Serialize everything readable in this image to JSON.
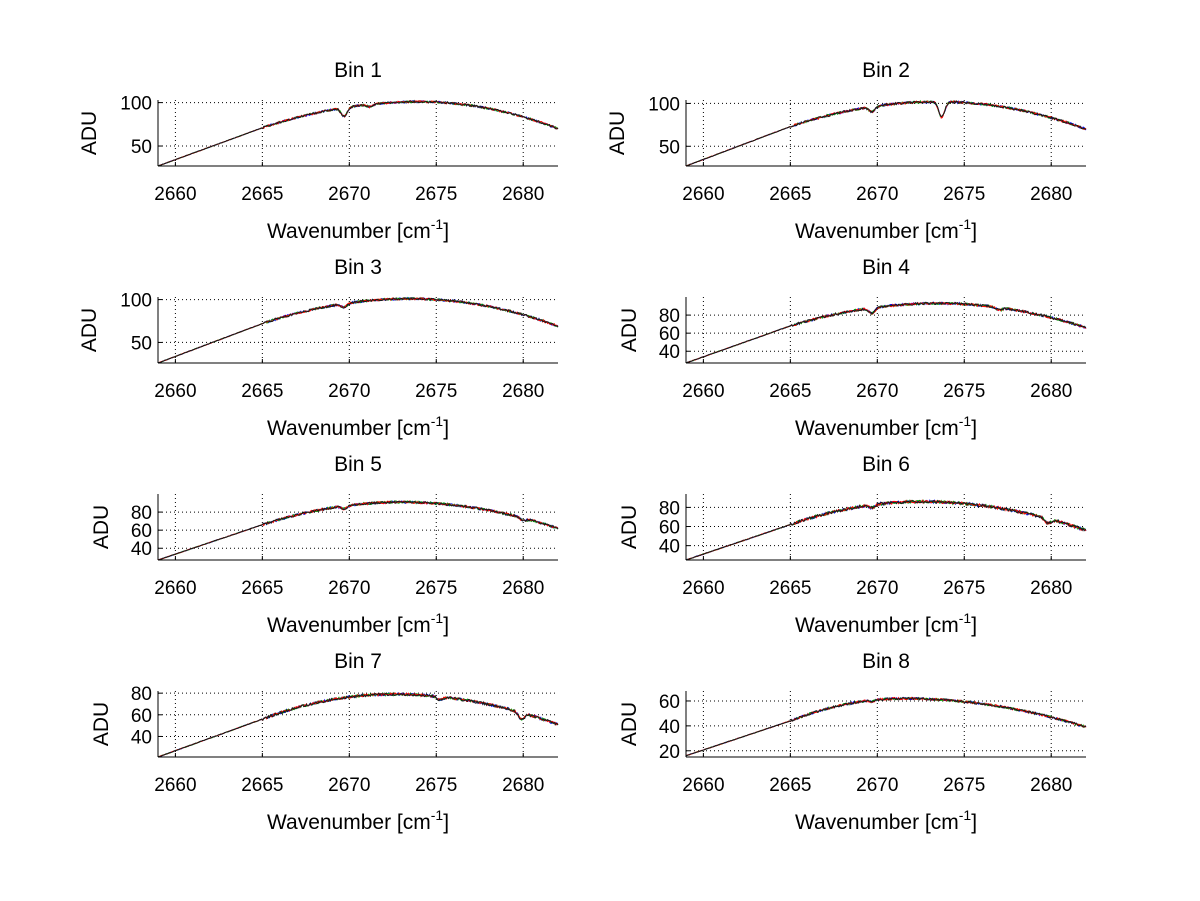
{
  "figure": {
    "colors": {
      "background": "#ffffff",
      "axes": "#000000",
      "grid": "#000000",
      "series": [
        "#0000ff",
        "#00a000",
        "#ff0000",
        "#1a1a1a"
      ]
    }
  },
  "chart_data": [
    {
      "type": "line",
      "title": "Bin 1",
      "xlabel_main": "Wavenumber [cm",
      "xlabel_sup": "-1",
      "xlabel_end": "]",
      "ylabel": "ADU",
      "xlim": [
        2659,
        2682
      ],
      "ylim": [
        27,
        103
      ],
      "grid": true,
      "xticks": [
        2660,
        2665,
        2670,
        2675,
        2680
      ],
      "xtick_labels": [
        "2660",
        "2665",
        "2670",
        "2675",
        "2680"
      ],
      "yticks": [
        50,
        100
      ],
      "ytick_labels": [
        "50",
        "100"
      ],
      "curve": {
        "start": 27,
        "mid": 71,
        "peak": 101,
        "peak_x": 2674,
        "end": 70,
        "dips": [
          [
            2669.7,
            -10
          ],
          [
            2671.2,
            -3
          ]
        ],
        "noise": 1.2
      }
    },
    {
      "type": "line",
      "title": "Bin 2",
      "xlabel_main": "Wavenumber [cm",
      "xlabel_sup": "-1",
      "xlabel_end": "]",
      "ylabel": "ADU",
      "xlim": [
        2659,
        2682
      ],
      "ylim": [
        27,
        104
      ],
      "grid": true,
      "xticks": [
        2660,
        2665,
        2670,
        2675,
        2680
      ],
      "xtick_labels": [
        "2660",
        "2665",
        "2670",
        "2675",
        "2680"
      ],
      "yticks": [
        50,
        100
      ],
      "ytick_labels": [
        "50",
        "100"
      ],
      "curve": {
        "start": 27,
        "mid": 73,
        "peak": 102,
        "peak_x": 2673.5,
        "end": 70,
        "dips": [
          [
            2669.7,
            -6
          ],
          [
            2673.7,
            -18
          ]
        ],
        "noise": 1.3
      }
    },
    {
      "type": "line",
      "title": "Bin 3",
      "xlabel_main": "Wavenumber [cm",
      "xlabel_sup": "-1",
      "xlabel_end": "]",
      "ylabel": "ADU",
      "xlim": [
        2659,
        2682
      ],
      "ylim": [
        26,
        103
      ],
      "grid": true,
      "xticks": [
        2660,
        2665,
        2670,
        2675,
        2680
      ],
      "xtick_labels": [
        "2660",
        "2665",
        "2670",
        "2675",
        "2680"
      ],
      "yticks": [
        50,
        100
      ],
      "ytick_labels": [
        "50",
        "100"
      ],
      "curve": {
        "start": 26,
        "mid": 72,
        "peak": 101,
        "peak_x": 2673.5,
        "end": 69,
        "dips": [
          [
            2669.7,
            -4
          ]
        ],
        "noise": 1.3
      }
    },
    {
      "type": "line",
      "title": "Bin 4",
      "xlabel_main": "Wavenumber [cm",
      "xlabel_sup": "-1",
      "xlabel_end": "]",
      "ylabel": "ADU",
      "xlim": [
        2659,
        2682
      ],
      "ylim": [
        27,
        100
      ],
      "grid": true,
      "xticks": [
        2660,
        2665,
        2670,
        2675,
        2680
      ],
      "xtick_labels": [
        "2660",
        "2665",
        "2670",
        "2675",
        "2680"
      ],
      "yticks": [
        40,
        60,
        80
      ],
      "ytick_labels": [
        "40",
        "60",
        "80"
      ],
      "curve": {
        "start": 27,
        "mid": 68,
        "peak": 93,
        "peak_x": 2673.5,
        "end": 66,
        "dips": [
          [
            2669.7,
            -6
          ],
          [
            2677,
            -3
          ]
        ],
        "noise": 1.3
      }
    },
    {
      "type": "line",
      "title": "Bin 5",
      "xlabel_main": "Wavenumber [cm",
      "xlabel_sup": "-1",
      "xlabel_end": "]",
      "ylabel": "ADU",
      "xlim": [
        2659,
        2682
      ],
      "ylim": [
        27,
        100
      ],
      "grid": true,
      "xticks": [
        2660,
        2665,
        2670,
        2675,
        2680
      ],
      "xtick_labels": [
        "2660",
        "2665",
        "2670",
        "2675",
        "2680"
      ],
      "yticks": [
        40,
        60,
        80
      ],
      "ytick_labels": [
        "40",
        "60",
        "80"
      ],
      "curve": {
        "start": 27,
        "mid": 66,
        "peak": 91,
        "peak_x": 2673,
        "end": 62,
        "dips": [
          [
            2669.7,
            -3
          ],
          [
            2680,
            -3
          ]
        ],
        "noise": 1.3
      }
    },
    {
      "type": "line",
      "title": "Bin 6",
      "xlabel_main": "Wavenumber [cm",
      "xlabel_sup": "-1",
      "xlabel_end": "]",
      "ylabel": "ADU",
      "xlim": [
        2659,
        2682
      ],
      "ylim": [
        25,
        94
      ],
      "grid": true,
      "xticks": [
        2660,
        2665,
        2670,
        2675,
        2680
      ],
      "xtick_labels": [
        "2660",
        "2665",
        "2670",
        "2675",
        "2680"
      ],
      "yticks": [
        40,
        60,
        80
      ],
      "ytick_labels": [
        "40",
        "60",
        "80"
      ],
      "curve": {
        "start": 25,
        "mid": 62,
        "peak": 86,
        "peak_x": 2672.5,
        "end": 56,
        "dips": [
          [
            2669.7,
            -3
          ],
          [
            2679.8,
            -5
          ]
        ],
        "noise": 1.5
      }
    },
    {
      "type": "line",
      "title": "Bin 7",
      "xlabel_main": "Wavenumber [cm",
      "xlabel_sup": "-1",
      "xlabel_end": "]",
      "ylabel": "ADU",
      "xlim": [
        2659,
        2682
      ],
      "ylim": [
        21,
        82
      ],
      "grid": true,
      "xticks": [
        2660,
        2665,
        2670,
        2675,
        2680
      ],
      "xtick_labels": [
        "2660",
        "2665",
        "2670",
        "2675",
        "2680"
      ],
      "yticks": [
        40,
        60,
        80
      ],
      "ytick_labels": [
        "40",
        "60",
        "80"
      ],
      "curve": {
        "start": 21,
        "mid": 56,
        "peak": 79,
        "peak_x": 2672.5,
        "end": 51,
        "dips": [
          [
            2675.2,
            -3
          ],
          [
            2679.9,
            -6
          ]
        ],
        "noise": 1.2
      }
    },
    {
      "type": "line",
      "title": "Bin 8",
      "xlabel_main": "Wavenumber [cm",
      "xlabel_sup": "-1",
      "xlabel_end": "]",
      "ylabel": "ADU",
      "xlim": [
        2659,
        2682
      ],
      "ylim": [
        15,
        68
      ],
      "grid": true,
      "xticks": [
        2660,
        2665,
        2670,
        2675,
        2680
      ],
      "xtick_labels": [
        "2660",
        "2665",
        "2670",
        "2675",
        "2680"
      ],
      "yticks": [
        20,
        40,
        60
      ],
      "ytick_labels": [
        "20",
        "40",
        "60"
      ],
      "curve": {
        "start": 16,
        "mid": 44,
        "peak": 62,
        "peak_x": 2671.5,
        "end": 39,
        "dips": [
          [
            2669.7,
            -1
          ]
        ],
        "noise": 0.9
      }
    }
  ]
}
